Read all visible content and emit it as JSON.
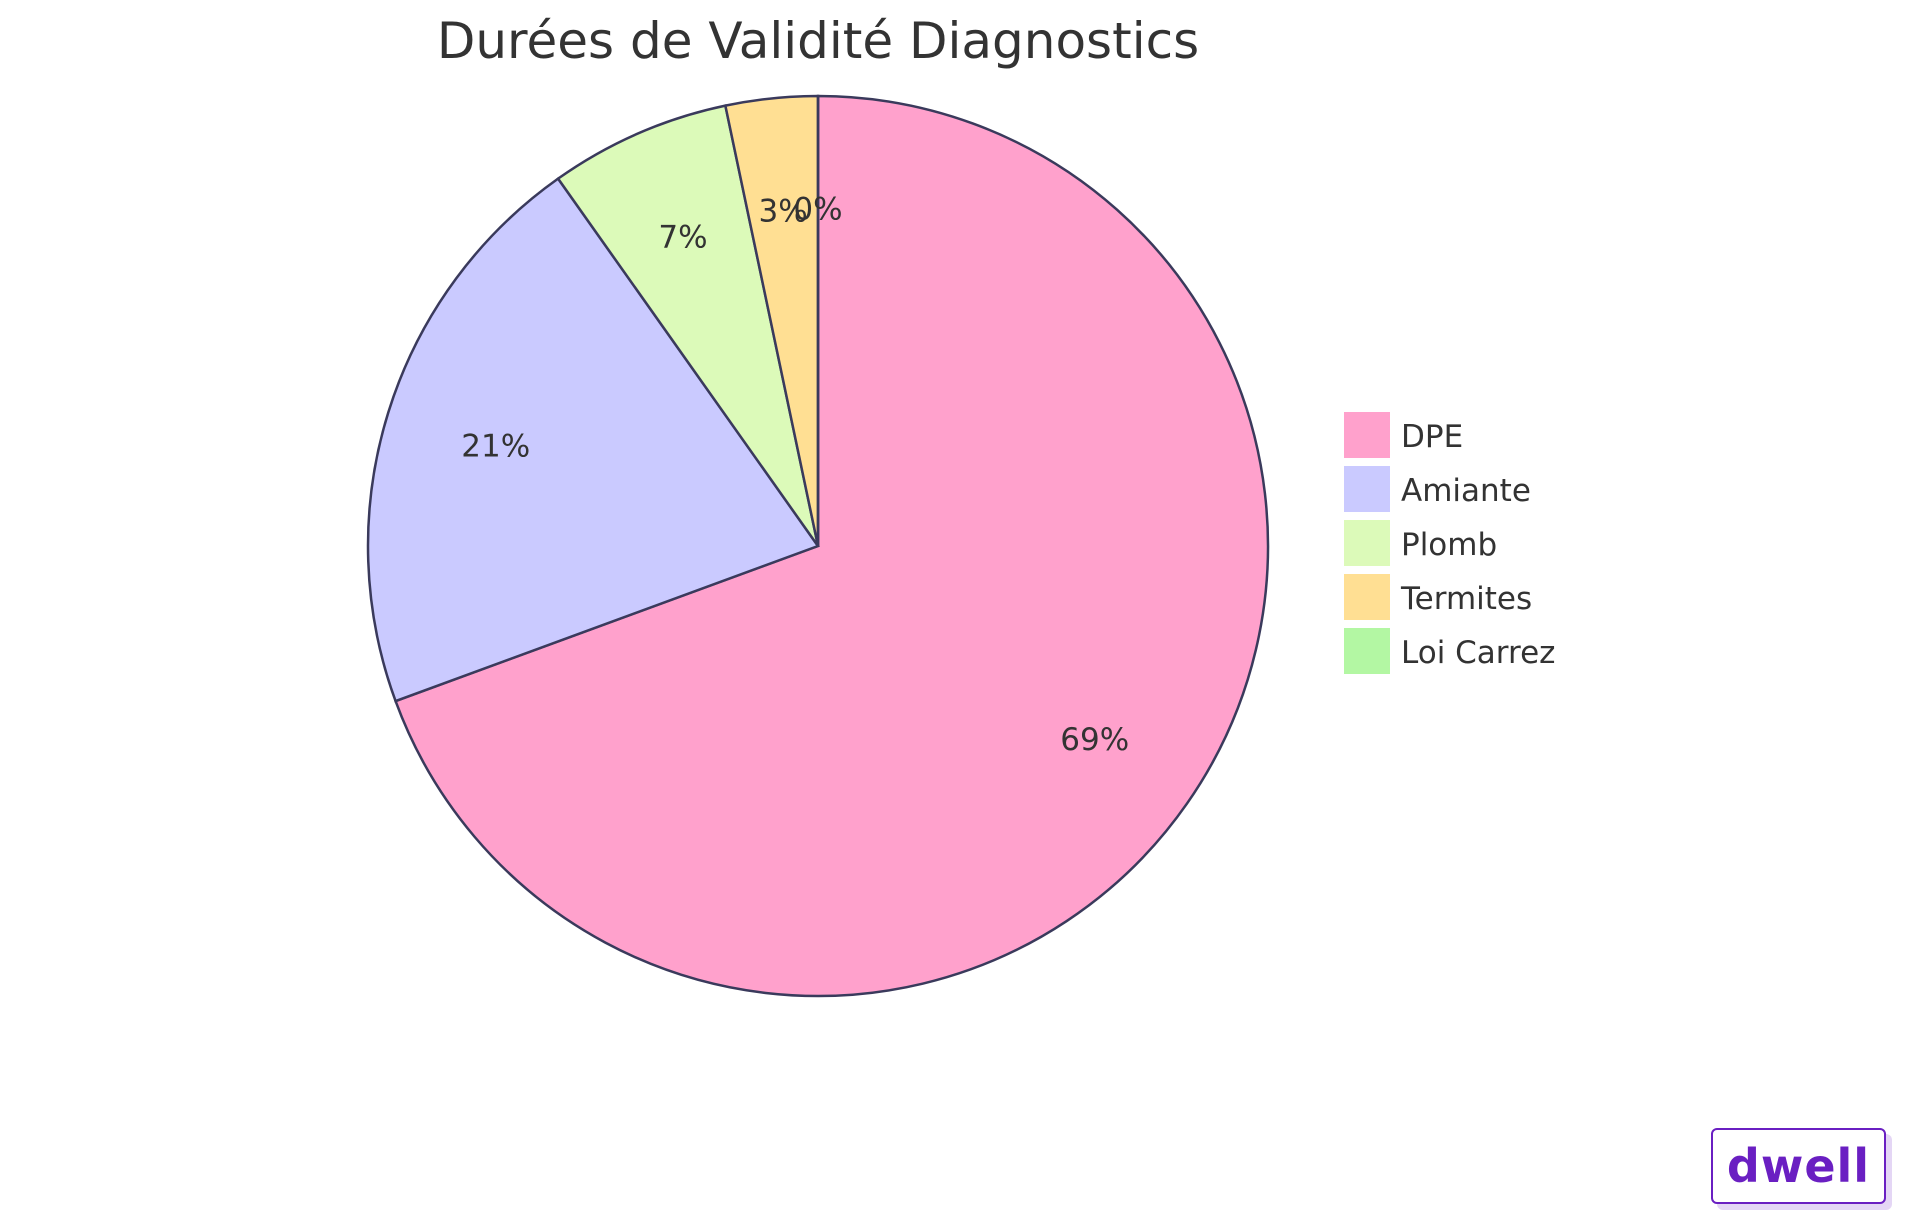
{
  "chart_data": {
    "type": "pie",
    "title": "Durées de Validité Diagnostics",
    "slices": [
      {
        "label": "DPE",
        "percent_label": "69%",
        "value": 69.4,
        "color": "#ffa1cc"
      },
      {
        "label": "Amiante",
        "percent_label": "21%",
        "value": 20.8,
        "color": "#cacaff"
      },
      {
        "label": "Plomb",
        "percent_label": "7%",
        "value": 6.5,
        "color": "#dcfab9"
      },
      {
        "label": "Termites",
        "percent_label": "3%",
        "value": 3.3,
        "color": "#ffdf93"
      },
      {
        "label": "Loi Carrez",
        "percent_label": "0%",
        "value": 0.0,
        "color": "#b3f7a3"
      }
    ],
    "legend_position": "right",
    "stroke_color": "#3a3a5c"
  },
  "logo": {
    "text": "dwell",
    "color": "#6a1fc2"
  }
}
